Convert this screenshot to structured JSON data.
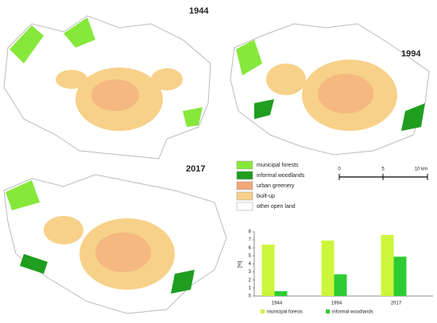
{
  "maps": [
    {
      "label": "1944"
    },
    {
      "label": "1994"
    },
    {
      "label": "2017"
    }
  ],
  "legend": {
    "items": [
      {
        "label": "municipal forests",
        "color": "#86e83a"
      },
      {
        "label": "informal woodlands",
        "color": "#1f9e1f"
      },
      {
        "label": "urban greenery",
        "color": "#f2a77a"
      },
      {
        "label": "built-up",
        "color": "#f7d189"
      },
      {
        "label": "other open land",
        "color": "#ffffff"
      }
    ]
  },
  "scale_bar": {
    "labels": [
      "0",
      "5",
      "10 km"
    ]
  },
  "chart_data": {
    "type": "bar",
    "y_label": "[%]",
    "categories": [
      "1944",
      "1994",
      "2017"
    ],
    "series": [
      {
        "name": "municipal forests",
        "color": "#ccf53c",
        "values": [
          6.4,
          6.9,
          7.6
        ]
      },
      {
        "name": "informal woodlands",
        "color": "#2ecc34",
        "values": [
          0.6,
          2.7,
          4.9
        ]
      }
    ],
    "ylim": [
      0,
      8
    ],
    "yticks": [
      0,
      1,
      2,
      3,
      4,
      5,
      6,
      7,
      8
    ]
  }
}
